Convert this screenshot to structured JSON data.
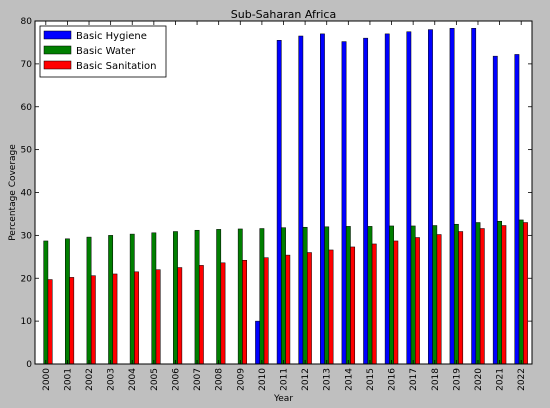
{
  "chart_data": {
    "type": "bar",
    "title": "Sub-Saharan Africa",
    "xlabel": "Year",
    "ylabel": "Percentage Coverage",
    "ylim": [
      0,
      80
    ],
    "yticks": [
      0,
      10,
      20,
      30,
      40,
      50,
      60,
      70,
      80
    ],
    "grid": false,
    "legend_position": "top-left",
    "categories": [
      "2000",
      "2001",
      "2002",
      "2003",
      "2004",
      "2005",
      "2006",
      "2007",
      "2008",
      "2009",
      "2010",
      "2011",
      "2012",
      "2013",
      "2014",
      "2015",
      "2016",
      "2017",
      "2018",
      "2019",
      "2020",
      "2021",
      "2022"
    ],
    "series": [
      {
        "name": "Basic Hygiene",
        "color": "#0000ff",
        "values": [
          null,
          null,
          null,
          null,
          null,
          null,
          null,
          null,
          null,
          null,
          10.0,
          75.5,
          76.5,
          77.0,
          75.2,
          76.0,
          77.0,
          77.5,
          78.0,
          78.3,
          78.3,
          71.8,
          72.2
        ]
      },
      {
        "name": "Basic Water",
        "color": "#007f00",
        "values": [
          28.7,
          29.2,
          29.6,
          30.0,
          30.3,
          30.6,
          30.9,
          31.2,
          31.4,
          31.5,
          31.6,
          31.8,
          31.9,
          32.0,
          32.1,
          32.1,
          32.2,
          32.2,
          32.3,
          32.6,
          33.0,
          33.3,
          33.6
        ]
      },
      {
        "name": "Basic Sanitation",
        "color": "#ff0000",
        "values": [
          19.7,
          20.2,
          20.6,
          21.0,
          21.5,
          22.0,
          22.5,
          23.0,
          23.6,
          24.2,
          24.8,
          25.4,
          26.0,
          26.6,
          27.3,
          28.0,
          28.7,
          29.5,
          30.2,
          30.9,
          31.6,
          32.3,
          33.0
        ]
      }
    ]
  }
}
